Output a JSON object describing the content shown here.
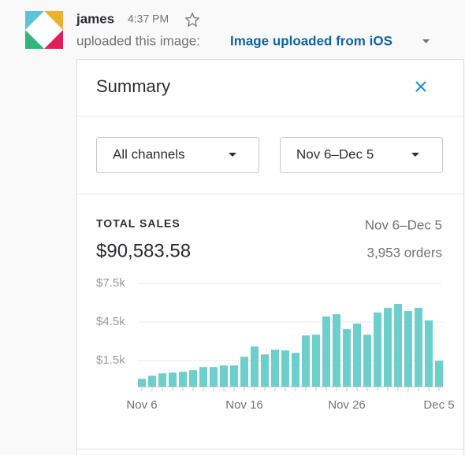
{
  "message": {
    "author": "james",
    "time": "4:37 PM",
    "action": "uploaded this image:",
    "link": "Image uploaded from iOS"
  },
  "card": {
    "title": "Summary",
    "filters": [
      "All channels",
      "Nov 6–Dec 5"
    ],
    "metric_label": "TOTAL SALES",
    "metric_value": "$90,583.58",
    "range": "Nov 6–Dec 5",
    "orders": "3,953 orders"
  },
  "chart_data": {
    "type": "bar",
    "color": "#6ccfcb",
    "grid": true,
    "categories": [
      "Nov 6",
      null,
      null,
      null,
      null,
      null,
      null,
      null,
      null,
      null,
      "Nov 16",
      null,
      null,
      null,
      null,
      null,
      null,
      null,
      null,
      null,
      "Nov 26",
      null,
      null,
      null,
      null,
      null,
      null,
      null,
      null,
      "Dec 5"
    ],
    "values": [
      100,
      340,
      520,
      580,
      640,
      770,
      1010,
      1010,
      1130,
      1130,
      1810,
      2600,
      1990,
      2360,
      2300,
      2110,
      3460,
      3520,
      4930,
      5110,
      3950,
      4380,
      3520,
      5240,
      5600,
      5910,
      5360,
      5600,
      4620,
      1500
    ],
    "ylim": [
      -500,
      7500
    ],
    "yticks": [
      {
        "value": 1500,
        "label": "$1.5k"
      },
      {
        "value": 4500,
        "label": "$4.5k"
      },
      {
        "value": 7500,
        "label": "$7.5k"
      }
    ]
  }
}
